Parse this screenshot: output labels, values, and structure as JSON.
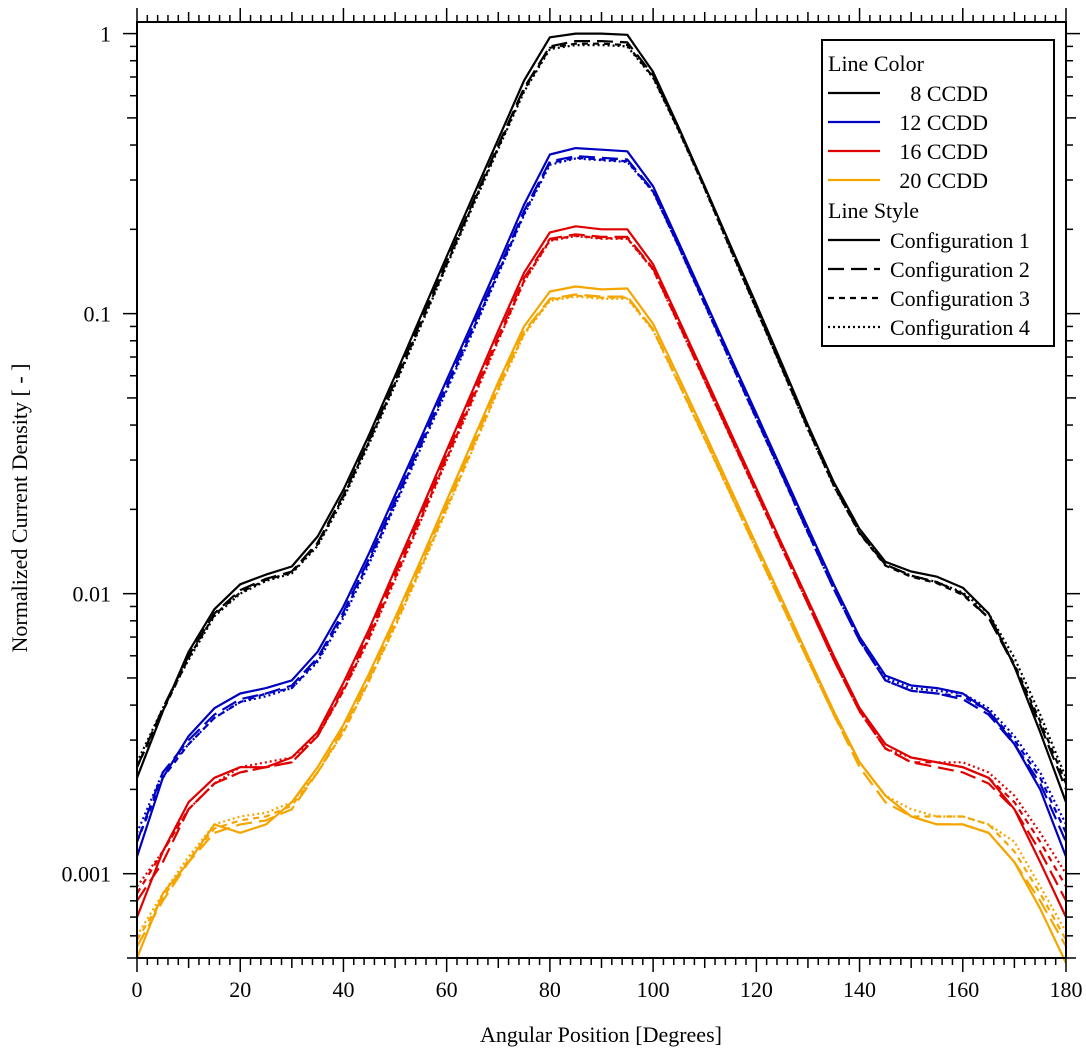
{
  "chart_data": {
    "type": "line",
    "title": "",
    "xlabel": "Angular Position [Degrees]",
    "ylabel": "Normalized Current Density [ - ]",
    "xlim": [
      0,
      180
    ],
    "ylim": [
      0.0005,
      1.1
    ],
    "yscale": "log",
    "grid": false,
    "legend_placement": "top-right",
    "x_tick_labels": [
      "0",
      "20",
      "40",
      "60",
      "80",
      "100",
      "120",
      "140",
      "160",
      "180"
    ],
    "y_tick_labels": [
      "0.001",
      "0.01",
      "0.1",
      "1"
    ],
    "x_ticks": [
      0,
      20,
      40,
      60,
      80,
      100,
      120,
      140,
      160,
      180
    ],
    "y_ticks": [
      0.001,
      0.01,
      0.1,
      1
    ],
    "legend": {
      "color_title": "Line Color",
      "color_entries": [
        {
          "label": "8 CCDD",
          "color": "#000000"
        },
        {
          "label": "12 CCDD",
          "color": "#0000c0"
        },
        {
          "label": "16 CCDD",
          "color": "#e00000"
        },
        {
          "label": "20 CCDD",
          "color": "#f5a500"
        }
      ],
      "style_title": "Line Style",
      "style_entries": [
        {
          "label": "Configuration 1",
          "dash": "solid"
        },
        {
          "label": "Configuration 2",
          "dash": "dash"
        },
        {
          "label": "Configuration 3",
          "dash": "short-dash"
        },
        {
          "label": "Configuration 4",
          "dash": "dot"
        }
      ]
    },
    "x": [
      0,
      5,
      10,
      15,
      20,
      25,
      30,
      35,
      40,
      45,
      50,
      55,
      60,
      65,
      70,
      75,
      80,
      85,
      90,
      95,
      100,
      105,
      110,
      115,
      120,
      125,
      130,
      135,
      140,
      145,
      150,
      155,
      160,
      165,
      170,
      175,
      180
    ],
    "series": [
      {
        "color": "#000000",
        "dash": "solid",
        "values": [
          0.0022,
          0.0038,
          0.0062,
          0.0088,
          0.0108,
          0.0117,
          0.0125,
          0.016,
          0.0235,
          0.037,
          0.06,
          0.098,
          0.16,
          0.26,
          0.42,
          0.68,
          0.97,
          1.0,
          1.0,
          0.99,
          0.73,
          0.46,
          0.285,
          0.175,
          0.108,
          0.066,
          0.04,
          0.025,
          0.017,
          0.013,
          0.012,
          0.0115,
          0.0105,
          0.0085,
          0.0055,
          0.0032,
          0.0018
        ]
      },
      {
        "color": "#000000",
        "dash": "dash",
        "values": [
          0.0024,
          0.0039,
          0.006,
          0.0085,
          0.0103,
          0.0113,
          0.012,
          0.0152,
          0.0225,
          0.0355,
          0.0575,
          0.094,
          0.153,
          0.248,
          0.4,
          0.64,
          0.9,
          0.94,
          0.94,
          0.93,
          0.71,
          0.455,
          0.283,
          0.172,
          0.105,
          0.064,
          0.039,
          0.0245,
          0.0165,
          0.0127,
          0.0116,
          0.011,
          0.01,
          0.0082,
          0.0055,
          0.0034,
          0.002
        ]
      },
      {
        "color": "#000000",
        "dash": "short-dash",
        "values": [
          0.0024,
          0.0038,
          0.0059,
          0.0084,
          0.0101,
          0.0112,
          0.0119,
          0.015,
          0.0222,
          0.035,
          0.0565,
          0.092,
          0.15,
          0.244,
          0.393,
          0.63,
          0.89,
          0.92,
          0.92,
          0.91,
          0.7,
          0.45,
          0.28,
          0.17,
          0.104,
          0.0635,
          0.0388,
          0.0243,
          0.0164,
          0.0126,
          0.0115,
          0.0109,
          0.0099,
          0.0082,
          0.0056,
          0.0035,
          0.0021
        ]
      },
      {
        "color": "#000000",
        "dash": "dot",
        "values": [
          0.0025,
          0.0039,
          0.0058,
          0.0083,
          0.01,
          0.0111,
          0.0118,
          0.0148,
          0.0218,
          0.0344,
          0.0555,
          0.0905,
          0.148,
          0.24,
          0.387,
          0.62,
          0.88,
          0.91,
          0.91,
          0.9,
          0.695,
          0.448,
          0.279,
          0.169,
          0.1035,
          0.0632,
          0.0386,
          0.0242,
          0.0165,
          0.0127,
          0.0116,
          0.011,
          0.0101,
          0.0085,
          0.0059,
          0.0037,
          0.0022
        ]
      },
      {
        "color": "#0000c0",
        "dash": "solid",
        "values": [
          0.00115,
          0.0022,
          0.0031,
          0.0039,
          0.0044,
          0.0046,
          0.0049,
          0.0062,
          0.009,
          0.014,
          0.0225,
          0.036,
          0.058,
          0.093,
          0.15,
          0.245,
          0.37,
          0.39,
          0.385,
          0.38,
          0.285,
          0.179,
          0.112,
          0.07,
          0.044,
          0.0275,
          0.0172,
          0.0108,
          0.007,
          0.0051,
          0.0047,
          0.0046,
          0.0044,
          0.0038,
          0.0029,
          0.002,
          0.00115
        ]
      },
      {
        "color": "#0000c0",
        "dash": "dash",
        "values": [
          0.0013,
          0.0023,
          0.003,
          0.0037,
          0.0042,
          0.0044,
          0.0047,
          0.0059,
          0.0086,
          0.0134,
          0.0215,
          0.0345,
          0.0555,
          0.089,
          0.143,
          0.233,
          0.35,
          0.365,
          0.36,
          0.355,
          0.275,
          0.174,
          0.109,
          0.068,
          0.0425,
          0.0266,
          0.0166,
          0.0104,
          0.0068,
          0.0049,
          0.0045,
          0.0044,
          0.0042,
          0.0037,
          0.0029,
          0.0021,
          0.0013
        ]
      },
      {
        "color": "#0000c0",
        "dash": "short-dash",
        "values": [
          0.0013,
          0.0022,
          0.0029,
          0.0036,
          0.0041,
          0.0044,
          0.0046,
          0.0058,
          0.0084,
          0.0131,
          0.021,
          0.0338,
          0.0543,
          0.087,
          0.14,
          0.228,
          0.345,
          0.36,
          0.355,
          0.35,
          0.273,
          0.173,
          0.108,
          0.0675,
          0.0422,
          0.0264,
          0.0165,
          0.0104,
          0.0068,
          0.0049,
          0.0045,
          0.0044,
          0.0043,
          0.0038,
          0.003,
          0.0022,
          0.0014
        ]
      },
      {
        "color": "#0000c0",
        "dash": "dot",
        "values": [
          0.0014,
          0.0023,
          0.0029,
          0.0036,
          0.0041,
          0.0043,
          0.0046,
          0.0057,
          0.0082,
          0.0128,
          0.0206,
          0.0331,
          0.0532,
          0.0855,
          0.138,
          0.225,
          0.34,
          0.358,
          0.353,
          0.348,
          0.272,
          0.1725,
          0.1078,
          0.0673,
          0.0421,
          0.0264,
          0.0165,
          0.0104,
          0.0068,
          0.005,
          0.0046,
          0.0045,
          0.0044,
          0.0039,
          0.0031,
          0.0023,
          0.0015
        ]
      },
      {
        "color": "#e00000",
        "dash": "solid",
        "values": [
          0.0007,
          0.0012,
          0.0018,
          0.0022,
          0.0024,
          0.0024,
          0.0026,
          0.0032,
          0.0048,
          0.0075,
          0.0122,
          0.0198,
          0.0325,
          0.053,
          0.087,
          0.14,
          0.195,
          0.205,
          0.2,
          0.2,
          0.15,
          0.095,
          0.06,
          0.0377,
          0.0238,
          0.015,
          0.0095,
          0.006,
          0.0039,
          0.0029,
          0.0026,
          0.0025,
          0.0024,
          0.0022,
          0.0017,
          0.0011,
          0.0007
        ]
      },
      {
        "color": "#e00000",
        "dash": "dash",
        "values": [
          0.0008,
          0.0011,
          0.0017,
          0.0021,
          0.0023,
          0.0024,
          0.0025,
          0.0031,
          0.0046,
          0.0072,
          0.0117,
          0.019,
          0.0312,
          0.0508,
          0.083,
          0.134,
          0.185,
          0.192,
          0.188,
          0.188,
          0.145,
          0.092,
          0.058,
          0.0365,
          0.0231,
          0.0146,
          0.0092,
          0.0058,
          0.0038,
          0.0028,
          0.0025,
          0.0024,
          0.0023,
          0.0021,
          0.0017,
          0.0012,
          0.0008
        ]
      },
      {
        "color": "#e00000",
        "dash": "short-dash",
        "values": [
          0.00085,
          0.0012,
          0.0017,
          0.0021,
          0.0023,
          0.0024,
          0.0025,
          0.0031,
          0.0045,
          0.007,
          0.0114,
          0.0185,
          0.0304,
          0.0495,
          0.081,
          0.131,
          0.183,
          0.19,
          0.186,
          0.186,
          0.144,
          0.0915,
          0.0577,
          0.0363,
          0.023,
          0.0145,
          0.0092,
          0.0058,
          0.0038,
          0.0028,
          0.0025,
          0.0025,
          0.0024,
          0.0022,
          0.0018,
          0.0013,
          0.0009
        ]
      },
      {
        "color": "#e00000",
        "dash": "dot",
        "values": [
          0.0009,
          0.0012,
          0.0017,
          0.0021,
          0.0024,
          0.0025,
          0.0026,
          0.0031,
          0.0045,
          0.0069,
          0.0112,
          0.0182,
          0.0299,
          0.0488,
          0.08,
          0.13,
          0.182,
          0.189,
          0.185,
          0.185,
          0.1435,
          0.0912,
          0.0575,
          0.0362,
          0.0229,
          0.0145,
          0.0092,
          0.0058,
          0.0038,
          0.0028,
          0.0026,
          0.0025,
          0.0025,
          0.0023,
          0.0019,
          0.0014,
          0.001
        ]
      },
      {
        "color": "#f5a500",
        "dash": "solid",
        "values": [
          0.0005,
          0.00085,
          0.0011,
          0.0015,
          0.0014,
          0.0015,
          0.0018,
          0.0024,
          0.0034,
          0.0052,
          0.0082,
          0.0132,
          0.0215,
          0.035,
          0.057,
          0.09,
          0.12,
          0.125,
          0.122,
          0.123,
          0.092,
          0.059,
          0.0375,
          0.0237,
          0.015,
          0.0095,
          0.006,
          0.0038,
          0.0025,
          0.0019,
          0.0016,
          0.0015,
          0.0015,
          0.0014,
          0.0011,
          0.00075,
          0.00048
        ]
      },
      {
        "color": "#f5a500",
        "dash": "dash",
        "values": [
          0.00055,
          0.0008,
          0.0011,
          0.0014,
          0.0015,
          0.00155,
          0.0017,
          0.0023,
          0.0033,
          0.005,
          0.0079,
          0.0127,
          0.0207,
          0.0337,
          0.055,
          0.0865,
          0.113,
          0.117,
          0.115,
          0.115,
          0.088,
          0.0565,
          0.036,
          0.0228,
          0.0144,
          0.0091,
          0.0058,
          0.0037,
          0.0024,
          0.0018,
          0.0016,
          0.0015,
          0.0015,
          0.0014,
          0.0011,
          0.0008,
          0.00055
        ]
      },
      {
        "color": "#f5a500",
        "dash": "short-dash",
        "values": [
          0.00058,
          0.00082,
          0.00112,
          0.00145,
          0.00155,
          0.0016,
          0.00175,
          0.0023,
          0.0032,
          0.0049,
          0.0077,
          0.0124,
          0.0202,
          0.033,
          0.054,
          0.085,
          0.112,
          0.116,
          0.114,
          0.114,
          0.0875,
          0.0562,
          0.0358,
          0.0227,
          0.0144,
          0.0091,
          0.0058,
          0.0037,
          0.0025,
          0.0019,
          0.0016,
          0.0016,
          0.0016,
          0.0015,
          0.0012,
          0.00085,
          0.00058
        ]
      },
      {
        "color": "#f5a500",
        "dash": "dot",
        "values": [
          0.0006,
          0.00085,
          0.00115,
          0.0015,
          0.0016,
          0.00165,
          0.0018,
          0.0023,
          0.0032,
          0.0049,
          0.0076,
          0.0122,
          0.0199,
          0.0325,
          0.0532,
          0.084,
          0.111,
          0.115,
          0.113,
          0.113,
          0.087,
          0.056,
          0.0357,
          0.0226,
          0.0143,
          0.0091,
          0.0058,
          0.0037,
          0.0025,
          0.0019,
          0.0017,
          0.0016,
          0.0016,
          0.0015,
          0.0013,
          0.0009,
          0.00062
        ]
      }
    ]
  }
}
